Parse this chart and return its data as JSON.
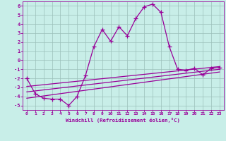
{
  "xlabel": "Windchill (Refroidissement éolien,°C)",
  "bg_color": "#c8eee8",
  "line_color": "#990099",
  "x": [
    0,
    1,
    2,
    3,
    4,
    5,
    6,
    7,
    8,
    9,
    10,
    11,
    12,
    13,
    14,
    15,
    16,
    17,
    18,
    19,
    20,
    21,
    22,
    23
  ],
  "y": [
    -2.0,
    -3.7,
    -4.2,
    -4.3,
    -4.3,
    -5.0,
    -4.0,
    -1.7,
    1.5,
    3.4,
    2.1,
    3.7,
    2.7,
    4.6,
    5.9,
    6.2,
    5.3,
    1.5,
    -1.0,
    -1.1,
    -0.9,
    -1.6,
    -0.9,
    -0.8
  ],
  "ylim": [
    -5.5,
    6.5
  ],
  "xlim": [
    -0.5,
    23.5
  ],
  "yticks": [
    -5,
    -4,
    -3,
    -2,
    -1,
    0,
    1,
    2,
    3,
    4,
    5,
    6
  ],
  "xticks": [
    0,
    1,
    2,
    3,
    4,
    5,
    6,
    7,
    8,
    9,
    10,
    11,
    12,
    13,
    14,
    15,
    16,
    17,
    18,
    19,
    20,
    21,
    22,
    23
  ],
  "trend1_x": [
    0,
    23
  ],
  "trend1_y": [
    -3.5,
    -1.0
  ],
  "trend2_x": [
    0,
    23
  ],
  "trend2_y": [
    -4.2,
    -1.3
  ],
  "trend3_x": [
    0,
    23
  ],
  "trend3_y": [
    -2.9,
    -0.7
  ]
}
